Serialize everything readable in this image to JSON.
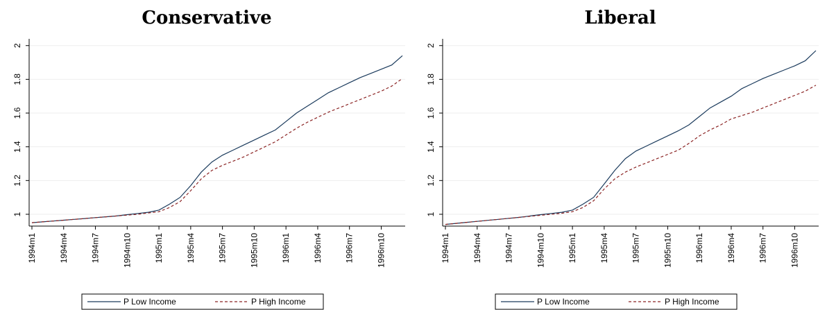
{
  "chart_data": [
    {
      "type": "line",
      "title": "Conservative",
      "xlabel": "",
      "ylabel": "",
      "x_tick_labels": [
        "1994m1",
        "1994m4",
        "1994m7",
        "1994m10",
        "1995m1",
        "1995m4",
        "1995m7",
        "1995m10",
        "1996m1",
        "1996m4",
        "1996m7",
        "1996m10"
      ],
      "y_ticks": [
        1,
        1.2,
        1.4,
        1.6,
        1.8,
        2
      ],
      "y_tick_labels": [
        "1",
        "1.2",
        "1.4",
        "1.6",
        "1.8",
        "2"
      ],
      "ylim": [
        0.93,
        2.04
      ],
      "x": [
        "1994m1",
        "1994m2",
        "1994m3",
        "1994m4",
        "1994m5",
        "1994m6",
        "1994m7",
        "1994m8",
        "1994m9",
        "1994m10",
        "1994m11",
        "1994m12",
        "1995m1",
        "1995m2",
        "1995m3",
        "1995m4",
        "1995m5",
        "1995m6",
        "1995m7",
        "1995m8",
        "1995m9",
        "1995m10",
        "1995m11",
        "1995m12",
        "1996m1",
        "1996m2",
        "1996m3",
        "1996m4",
        "1996m5",
        "1996m6",
        "1996m7",
        "1996m8",
        "1996m9",
        "1996m10",
        "1996m11",
        "1996m12"
      ],
      "series": [
        {
          "name": "P Low Income",
          "style": "solid",
          "color": "#1a3a5c",
          "values": [
            0.95,
            0.955,
            0.96,
            0.965,
            0.97,
            0.975,
            0.98,
            0.985,
            0.99,
            0.998,
            1.005,
            1.012,
            1.025,
            1.06,
            1.1,
            1.17,
            1.25,
            1.31,
            1.35,
            1.38,
            1.41,
            1.44,
            1.47,
            1.5,
            1.55,
            1.6,
            1.64,
            1.68,
            1.72,
            1.75,
            1.78,
            1.81,
            1.835,
            1.86,
            1.885,
            1.94
          ]
        },
        {
          "name": "P High Income",
          "style": "dashed",
          "color": "#8b2323",
          "values": [
            0.95,
            0.955,
            0.96,
            0.965,
            0.97,
            0.975,
            0.98,
            0.985,
            0.99,
            0.995,
            1.0,
            1.008,
            1.015,
            1.04,
            1.075,
            1.14,
            1.21,
            1.26,
            1.29,
            1.315,
            1.34,
            1.37,
            1.4,
            1.43,
            1.47,
            1.51,
            1.545,
            1.575,
            1.605,
            1.63,
            1.655,
            1.68,
            1.705,
            1.73,
            1.76,
            1.805
          ]
        }
      ],
      "legend_position": "bottom",
      "grid": true
    },
    {
      "type": "line",
      "title": "Liberal",
      "xlabel": "",
      "ylabel": "",
      "x_tick_labels": [
        "1994m1",
        "1994m4",
        "1994m7",
        "1994m10",
        "1995m1",
        "1995m4",
        "1995m7",
        "1995m10",
        "1996m1",
        "1996m4",
        "1996m7",
        "1996m10"
      ],
      "y_ticks": [
        1,
        1.2,
        1.4,
        1.6,
        1.8,
        2
      ],
      "y_tick_labels": [
        "1",
        "1.2",
        "1.4",
        "1.6",
        "1.8",
        "2"
      ],
      "ylim": [
        0.93,
        2.04
      ],
      "x": [
        "1994m1",
        "1994m2",
        "1994m3",
        "1994m4",
        "1994m5",
        "1994m6",
        "1994m7",
        "1994m8",
        "1994m9",
        "1994m10",
        "1994m11",
        "1994m12",
        "1995m1",
        "1995m2",
        "1995m3",
        "1995m4",
        "1995m5",
        "1995m6",
        "1995m7",
        "1995m8",
        "1995m9",
        "1995m10",
        "1995m11",
        "1995m12",
        "1996m1",
        "1996m2",
        "1996m3",
        "1996m4",
        "1996m5",
        "1996m6",
        "1996m7",
        "1996m8",
        "1996m9",
        "1996m10",
        "1996m11",
        "1996m12"
      ],
      "series": [
        {
          "name": "P Low Income",
          "style": "solid",
          "color": "#1a3a5c",
          "values": [
            0.94,
            0.946,
            0.952,
            0.958,
            0.964,
            0.97,
            0.976,
            0.982,
            0.99,
            0.998,
            1.005,
            1.012,
            1.025,
            1.06,
            1.1,
            1.18,
            1.26,
            1.33,
            1.375,
            1.405,
            1.435,
            1.465,
            1.495,
            1.53,
            1.58,
            1.63,
            1.665,
            1.7,
            1.745,
            1.775,
            1.805,
            1.83,
            1.855,
            1.88,
            1.91,
            1.97
          ]
        },
        {
          "name": "P High Income",
          "style": "dashed",
          "color": "#8b2323",
          "values": [
            0.94,
            0.946,
            0.952,
            0.958,
            0.964,
            0.97,
            0.976,
            0.982,
            0.988,
            0.994,
            1.0,
            1.006,
            1.015,
            1.04,
            1.08,
            1.15,
            1.21,
            1.25,
            1.28,
            1.305,
            1.33,
            1.355,
            1.38,
            1.42,
            1.465,
            1.5,
            1.53,
            1.565,
            1.585,
            1.605,
            1.63,
            1.655,
            1.68,
            1.705,
            1.73,
            1.765
          ]
        }
      ],
      "legend_position": "bottom",
      "grid": true
    }
  ]
}
